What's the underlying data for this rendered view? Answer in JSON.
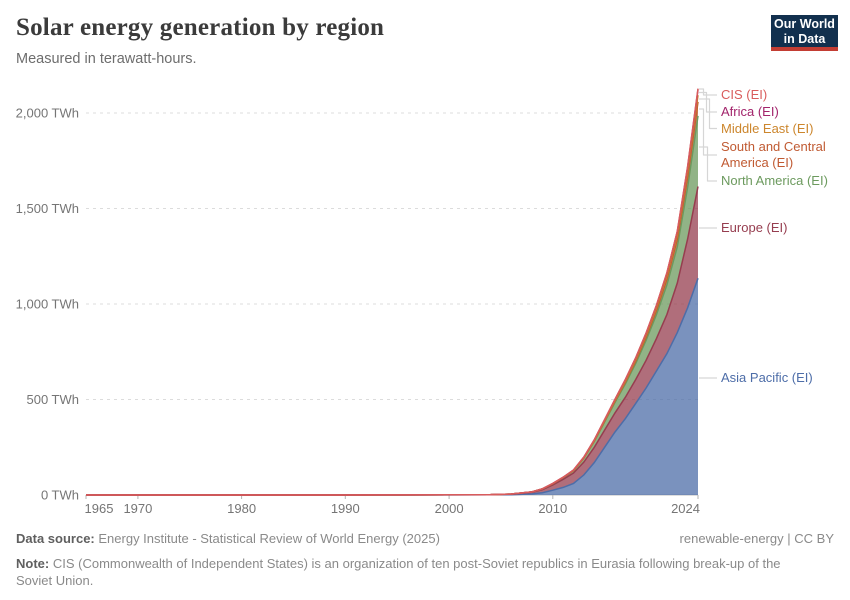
{
  "header": {
    "title": "Solar energy generation by region",
    "subtitle": "Measured in terawatt-hours."
  },
  "logo": {
    "line1": "Our World",
    "line2": "in Data"
  },
  "chart_data": {
    "type": "area",
    "stacked": true,
    "title": "Solar energy generation by region",
    "ylabel": "terawatt-hours",
    "unit": "TWh",
    "grid": "horizontal-dashed",
    "legend_position": "right",
    "xlim": [
      1965,
      2024
    ],
    "ylim": [
      0,
      2140
    ],
    "x_years": [
      1965,
      1990,
      1995,
      2000,
      2004,
      2006,
      2008,
      2009,
      2010,
      2011,
      2012,
      2013,
      2014,
      2015,
      2016,
      2017,
      2018,
      2019,
      2020,
      2021,
      2022,
      2023,
      2024
    ],
    "series_bottom_to_top": [
      {
        "name": "Asia Pacific (EI)",
        "color": "#4d6da8",
        "values": [
          0,
          0,
          0.1,
          0.3,
          0.8,
          1.5,
          6,
          12,
          25,
          40,
          60,
          105,
          170,
          250,
          330,
          400,
          480,
          560,
          650,
          740,
          850,
          980,
          1135
        ]
      },
      {
        "name": "Europe (EI)",
        "color": "#963d4f",
        "values": [
          0,
          0,
          0.1,
          0.1,
          0.7,
          2.5,
          8,
          16,
          28,
          42,
          55,
          68,
          80,
          90,
          100,
          112,
          125,
          145,
          170,
          205,
          260,
          360,
          480
        ]
      },
      {
        "name": "North America (EI)",
        "color": "#6c9a5e",
        "values": [
          0,
          0,
          0.3,
          0.5,
          0.8,
          1,
          2,
          4,
          6,
          9,
          12,
          20,
          30,
          42,
          55,
          70,
          85,
          105,
          125,
          155,
          190,
          270,
          370
        ]
      },
      {
        "name": "South and Central America (EI)",
        "color": "#c05a32",
        "values": [
          0,
          0,
          0,
          0,
          0,
          0,
          0,
          0,
          0.2,
          0.4,
          0.7,
          1.5,
          3,
          4.5,
          6,
          9,
          12,
          16,
          22,
          30,
          40,
          55,
          73
        ]
      },
      {
        "name": "Middle East (EI)",
        "color": "#cc862d",
        "values": [
          0,
          0,
          0,
          0,
          0,
          0,
          0,
          0.1,
          0.3,
          0.5,
          1,
          1.5,
          2,
          3,
          4,
          6,
          8,
          10,
          13,
          16,
          20,
          27,
          35
        ]
      },
      {
        "name": "Africa (EI)",
        "color": "#a2246b",
        "values": [
          0,
          0,
          0,
          0,
          0,
          0,
          0.1,
          0.3,
          1,
          1.5,
          2,
          3,
          4,
          5,
          6,
          7.5,
          9,
          11,
          13,
          16,
          19,
          24,
          30
        ]
      },
      {
        "name": "CIS (EI)",
        "color": "#d95c5c",
        "values": [
          0,
          0,
          0,
          0,
          0,
          0,
          0,
          0,
          0,
          0,
          0.1,
          0.2,
          0.3,
          0.4,
          0.5,
          0.8,
          1,
          1.5,
          2,
          2.5,
          3,
          4,
          5
        ]
      }
    ],
    "x_ticks": [
      {
        "value": 1965,
        "label": "1965"
      },
      {
        "value": 1970,
        "label": "1970"
      },
      {
        "value": 1980,
        "label": "1980"
      },
      {
        "value": 1990,
        "label": "1990"
      },
      {
        "value": 2000,
        "label": "2000"
      },
      {
        "value": 2010,
        "label": "2010"
      },
      {
        "value": 2024,
        "label": "2024"
      }
    ],
    "y_ticks": [
      {
        "value": 0,
        "label": "0 TWh"
      },
      {
        "value": 500,
        "label": "500 TWh"
      },
      {
        "value": 1000,
        "label": "1,000 TWh"
      },
      {
        "value": 1500,
        "label": "1,500 TWh"
      },
      {
        "value": 2000,
        "label": "2,000 TWh"
      }
    ]
  },
  "legend": {
    "entries": [
      {
        "label": "CIS (EI)",
        "color": "#d95c5c"
      },
      {
        "label": "Africa (EI)",
        "color": "#a2246b"
      },
      {
        "label": "Middle East (EI)",
        "color": "#cc862d"
      },
      {
        "label": "South and Central America (EI)",
        "color": "#c05a32"
      },
      {
        "label": "North America (EI)",
        "color": "#6c9a5e"
      },
      {
        "label": "Europe (EI)",
        "color": "#963d4f"
      },
      {
        "label": "Asia Pacific (EI)",
        "color": "#4d6da8"
      }
    ]
  },
  "footer": {
    "datasource_label": "Data source:",
    "datasource_text": "Energy Institute - Statistical Review of World Energy (2025)",
    "tag": "renewable-energy",
    "separator": "|",
    "license": "CC BY",
    "note_label": "Note:",
    "note_text": "CIS (Commonwealth of Independent States) is an organization of ten post-Soviet republics in Eurasia following break-up of the Soviet Union."
  }
}
